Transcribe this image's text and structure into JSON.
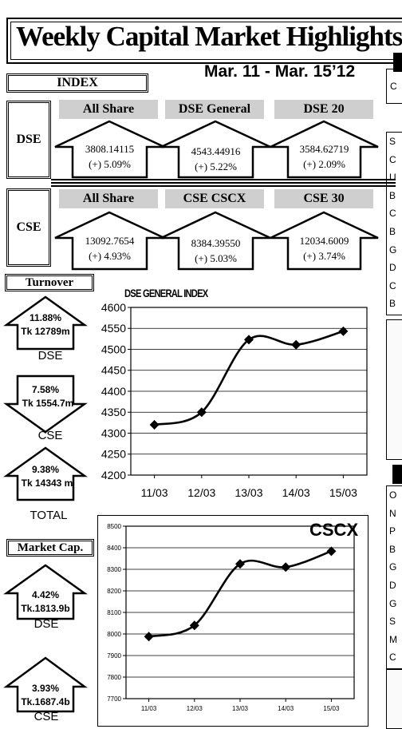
{
  "header": {
    "title": "Weekly Capital Market Highlights:",
    "date_range": "Mar. 11 - Mar. 15’12"
  },
  "index_section": {
    "label": "INDEX",
    "dse": {
      "label": "DSE",
      "cards": [
        {
          "name": "All Share",
          "value": "3808.14115",
          "change": "(+) 5.09%"
        },
        {
          "name": "DSE General",
          "value": "4543.44916",
          "change": "(+) 5.22%"
        },
        {
          "name": "DSE 20",
          "value": "3584.62719",
          "change": "(+) 2.09%"
        }
      ]
    },
    "cse": {
      "label": "CSE",
      "cards": [
        {
          "name": "All Share",
          "value": "13092.7654",
          "change": "(+) 4.93%"
        },
        {
          "name": "CSE CSCX",
          "value": "8384.39550",
          "change": "(+) 5.03%"
        },
        {
          "name": "CSE 30",
          "value": "12034.6009",
          "change": "(+) 3.74%"
        }
      ]
    }
  },
  "turnover": {
    "label": "Turnover",
    "items": [
      {
        "pct": "11.88%",
        "amount": "Tk 12789m",
        "label": "DSE",
        "direction": "up"
      },
      {
        "pct": "7.58%",
        "amount": "Tk 1554.7m",
        "label": "CSE",
        "direction": "down"
      },
      {
        "pct": "9.38%",
        "amount": "Tk 14343  m",
        "label": "TOTAL",
        "direction": "up"
      }
    ]
  },
  "market_cap": {
    "label": "Market Cap.",
    "items": [
      {
        "pct": "4.42%",
        "amount": "Tk.1813.9b",
        "label": "DSE",
        "direction": "up"
      },
      {
        "pct": "3.93%",
        "amount": "Tk.1687.4b",
        "label": "CSE",
        "direction": "up"
      }
    ]
  },
  "right_panel": {
    "row_initials_top": [
      "S",
      "C",
      "U",
      "B",
      "C",
      "B",
      "G",
      "D",
      "C",
      "B"
    ],
    "row_initials_bottom": [
      "O",
      "N",
      "P",
      "B",
      "G",
      "D",
      "G",
      "S",
      "M",
      "C"
    ],
    "header_initial": "C"
  },
  "chart_data": [
    {
      "type": "line",
      "title": "DSE GENERAL INDEX",
      "categories": [
        "11/03",
        "12/03",
        "13/03",
        "14/03",
        "15/03"
      ],
      "values": [
        4320,
        4350,
        4523,
        4511,
        4543
      ],
      "ylim": [
        4200,
        4600
      ],
      "yticks": [
        4200,
        4250,
        4300,
        4350,
        4400,
        4450,
        4500,
        4550,
        4600
      ],
      "grid": true
    },
    {
      "type": "line",
      "title": "CSCX",
      "categories": [
        "11/03",
        "12/03",
        "13/03",
        "14/03",
        "15/03"
      ],
      "values": [
        7988,
        8040,
        8325,
        8310,
        8384
      ],
      "ylim": [
        7700,
        8500
      ],
      "yticks": [
        7700,
        7800,
        7900,
        8000,
        8100,
        8200,
        8300,
        8400,
        8500
      ],
      "grid": true
    }
  ]
}
